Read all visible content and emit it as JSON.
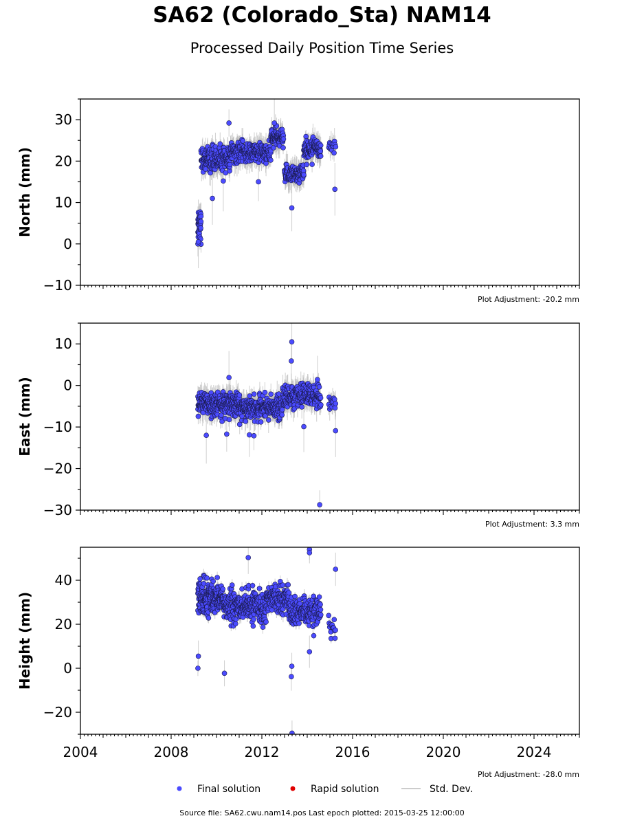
{
  "title": "SA62 (Colorado_Sta) NAM14",
  "subtitle": "Processed Daily Position Time Series",
  "footer": "Source file: SA62.cwu.nam14.pos  Last epoch plotted: 2015-03-25 12:00:00",
  "colors": {
    "final": "#4b4bff",
    "final_edge": "#1a1a4d",
    "rapid": "#e00000",
    "stddev": "#bbbbbb"
  },
  "legend": [
    {
      "label": "Final solution",
      "kind": "final"
    },
    {
      "label": "Rapid solution",
      "kind": "rapid"
    },
    {
      "label": "Std. Dev.",
      "kind": "stddev"
    }
  ],
  "chart_data": [
    {
      "type": "scatter",
      "name": "north",
      "ylabel": "North (mm)",
      "xlim": [
        2004,
        2026
      ],
      "ylim": [
        -10,
        35
      ],
      "yticks": [
        -10,
        0,
        10,
        20,
        30
      ],
      "x_ticklabels_shown": false,
      "annotation": "Plot Adjustment: -20.2 mm",
      "series": [
        {
          "label": "Final solution",
          "segments": [
            {
              "x0": 2009.18,
              "x1": 2009.32,
              "ymean": 5,
              "yspread": 3.5,
              "n": 40
            },
            {
              "x0": 2009.32,
              "x1": 2010.6,
              "ymean": 20.5,
              "yspread": 2.3,
              "n": 200
            },
            {
              "x0": 2010.6,
              "x1": 2012.4,
              "ymean": 22,
              "yspread": 2.0,
              "n": 240
            },
            {
              "x0": 2012.4,
              "x1": 2012.95,
              "ymean": 25.5,
              "yspread": 1.8,
              "n": 90
            },
            {
              "x0": 2013.0,
              "x1": 2013.85,
              "ymean": 17,
              "yspread": 1.8,
              "n": 120
            },
            {
              "x0": 2013.85,
              "x1": 2014.6,
              "ymean": 23,
              "yspread": 2.3,
              "n": 120
            },
            {
              "x0": 2014.95,
              "x1": 2015.25,
              "ymean": 24,
              "yspread": 1.5,
              "n": 15
            }
          ],
          "outliers": [
            {
              "x": 2009.18,
              "y": 0
            },
            {
              "x": 2009.2,
              "y": 0.5
            },
            {
              "x": 2009.82,
              "y": 11
            },
            {
              "x": 2010.3,
              "y": 15.2
            },
            {
              "x": 2010.55,
              "y": 29.2
            },
            {
              "x": 2011.85,
              "y": 15
            },
            {
              "x": 2013.32,
              "y": 8.7
            },
            {
              "x": 2015.22,
              "y": 13.2
            },
            {
              "x": 2012.55,
              "y": 29.2
            }
          ]
        }
      ]
    },
    {
      "type": "scatter",
      "name": "east",
      "ylabel": "East (mm)",
      "xlim": [
        2004,
        2026
      ],
      "ylim": [
        -30,
        15
      ],
      "yticks": [
        -30,
        -20,
        -10,
        0,
        10
      ],
      "x_ticklabels_shown": false,
      "annotation": "Plot Adjustment: 3.3 mm",
      "series": [
        {
          "label": "Final solution",
          "segments": [
            {
              "x0": 2009.18,
              "x1": 2011.0,
              "ymean": -4.5,
              "yspread": 2.2,
              "n": 300
            },
            {
              "x0": 2011.0,
              "x1": 2012.9,
              "ymean": -5.5,
              "yspread": 2.2,
              "n": 280
            },
            {
              "x0": 2012.9,
              "x1": 2014.6,
              "ymean": -2.5,
              "yspread": 2.4,
              "n": 230
            },
            {
              "x0": 2014.95,
              "x1": 2015.25,
              "ymean": -4.5,
              "yspread": 1.5,
              "n": 15
            }
          ],
          "outliers": [
            {
              "x": 2009.55,
              "y": -12
            },
            {
              "x": 2010.45,
              "y": -11.7
            },
            {
              "x": 2010.55,
              "y": 1.9
            },
            {
              "x": 2011.45,
              "y": -11.9
            },
            {
              "x": 2011.65,
              "y": -12.1
            },
            {
              "x": 2013.32,
              "y": 10.5
            },
            {
              "x": 2013.3,
              "y": 5.9
            },
            {
              "x": 2013.85,
              "y": -9.9
            },
            {
              "x": 2014.55,
              "y": -28.7
            },
            {
              "x": 2015.25,
              "y": -10.9
            },
            {
              "x": 2014.45,
              "y": 1.4
            }
          ]
        }
      ]
    },
    {
      "type": "scatter",
      "name": "height",
      "ylabel": "Height (mm)",
      "xlim": [
        2004,
        2026
      ],
      "ylim": [
        -30,
        55
      ],
      "yticks": [
        -20,
        0,
        20,
        40
      ],
      "xticks": [
        2004,
        2008,
        2012,
        2016,
        2020,
        2024
      ],
      "x_ticklabels_shown": true,
      "annotation": "Plot Adjustment: -28.0 mm",
      "series": [
        {
          "label": "Final solution",
          "segments": [
            {
              "x0": 2009.18,
              "x1": 2010.3,
              "ymean": 32,
              "yspread": 6,
              "n": 240
            },
            {
              "x0": 2010.3,
              "x1": 2012.2,
              "ymean": 28,
              "yspread": 5.5,
              "n": 300
            },
            {
              "x0": 2012.2,
              "x1": 2013.2,
              "ymean": 32,
              "yspread": 5,
              "n": 150
            },
            {
              "x0": 2013.2,
              "x1": 2014.6,
              "ymean": 25,
              "yspread": 5.5,
              "n": 200
            },
            {
              "x0": 2014.95,
              "x1": 2015.25,
              "ymean": 19,
              "yspread": 4,
              "n": 15
            }
          ],
          "outliers": [
            {
              "x": 2009.18,
              "y": 0
            },
            {
              "x": 2009.2,
              "y": 5.5
            },
            {
              "x": 2010.35,
              "y": -2.3
            },
            {
              "x": 2011.4,
              "y": 50.3
            },
            {
              "x": 2013.3,
              "y": -3.8
            },
            {
              "x": 2013.32,
              "y": 0.9
            },
            {
              "x": 2013.33,
              "y": -29.5
            },
            {
              "x": 2014.1,
              "y": 54
            },
            {
              "x": 2014.1,
              "y": 52.5
            },
            {
              "x": 2015.25,
              "y": 45
            },
            {
              "x": 2014.1,
              "y": 7.5
            }
          ]
        }
      ]
    }
  ]
}
